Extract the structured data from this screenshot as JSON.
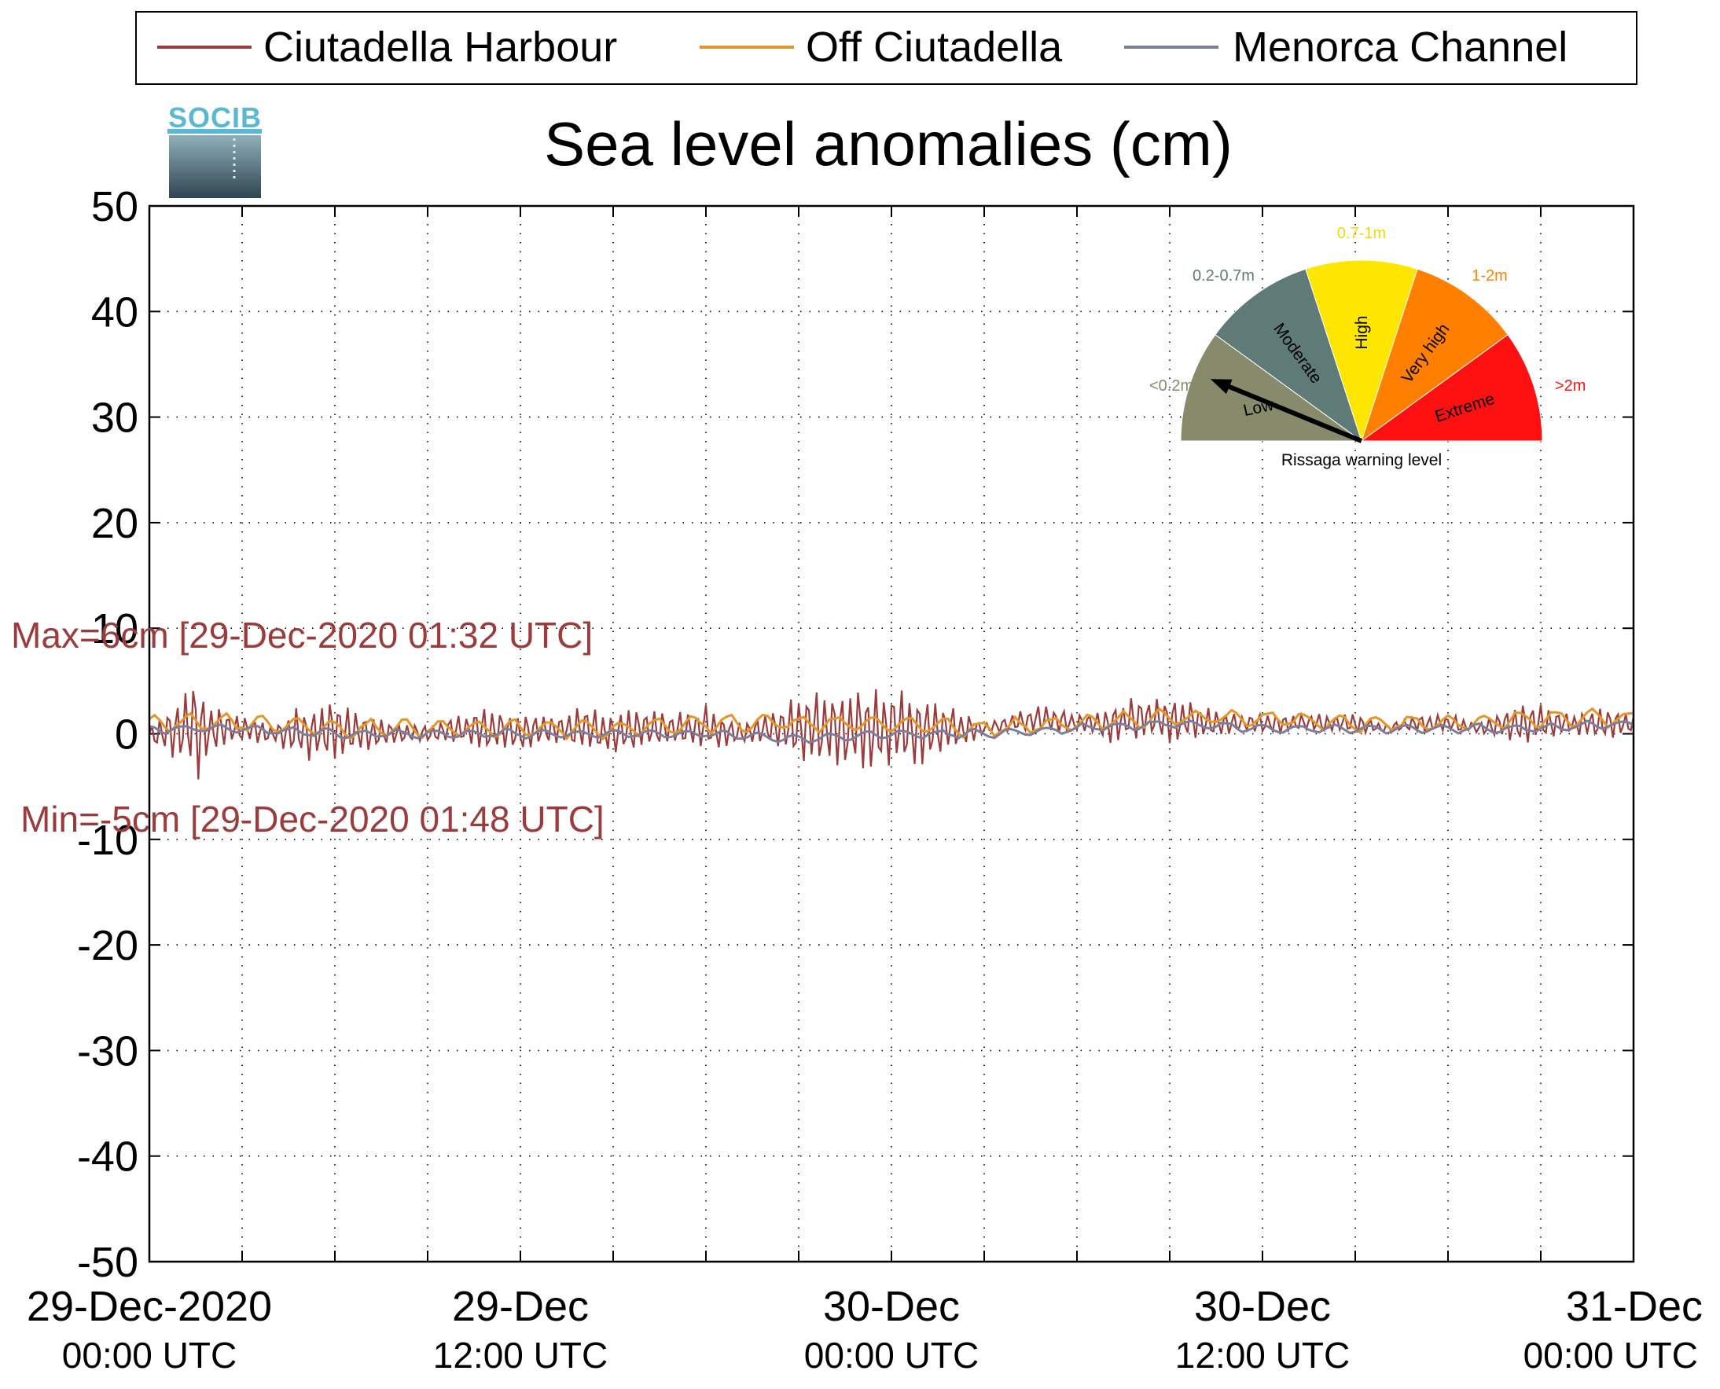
{
  "logo": {
    "text": "SOCIB"
  },
  "colors": {
    "harbour": "#9b3b3b",
    "off": "#e69526",
    "channel": "#7a7f9e",
    "annotation": "#9b3b3b",
    "gauge_low": "#878a6b",
    "gauge_moderate": "#5f7b78",
    "gauge_high": "#ffe600",
    "gauge_very_high": "#ff7f00",
    "gauge_extreme": "#ff1010",
    "label_low": "#878a6b",
    "label_moderate": "#5f7b78",
    "label_high": "#f5d800",
    "label_very_high": "#ff7f00",
    "label_extreme": "#ff1010"
  },
  "gauge": {
    "caption": "Rissaga warning level",
    "pointer_level": "Low",
    "sectors": [
      {
        "name": "Low",
        "range": "<0.2m",
        "color_key": "low"
      },
      {
        "name": "Moderate",
        "range": "0.2-0.7m",
        "color_key": "moderate"
      },
      {
        "name": "High",
        "range": "0.7-1m",
        "color_key": "high"
      },
      {
        "name": "Very high",
        "range": "1-2m",
        "color_key": "very_high"
      },
      {
        "name": "Extreme",
        "range": ">2m",
        "color_key": "extreme"
      }
    ]
  },
  "chart_data": {
    "type": "line",
    "title": "Sea level anomalies (cm)",
    "xlabel": "",
    "ylabel": "",
    "ylim": [
      -50,
      50
    ],
    "yticks": [
      -50,
      -40,
      -30,
      -20,
      -10,
      0,
      10,
      20,
      30,
      40,
      50
    ],
    "xlim": [
      "2020-12-29T00:00Z",
      "2020-12-31T00:00Z"
    ],
    "grid": true,
    "legend_position": "top",
    "xticks": [
      {
        "time": "2020-12-29T00:00Z",
        "line1": "29-Dec-2020",
        "line2": "00:00 UTC"
      },
      {
        "time": "2020-12-29T12:00Z",
        "line1": "29-Dec",
        "line2": "12:00 UTC"
      },
      {
        "time": "2020-12-30T00:00Z",
        "line1": "30-Dec",
        "line2": "00:00 UTC"
      },
      {
        "time": "2020-12-30T12:00Z",
        "line1": "30-Dec",
        "line2": "12:00 UTC"
      },
      {
        "time": "2020-12-31T00:00Z",
        "line1": "31-Dec",
        "line2": "00:00 UTC"
      }
    ],
    "minor_gridlines_hours": 3,
    "annotations": {
      "max": "Max=6cm [29-Dec-2020 01:32 UTC]",
      "min": "Min=-5cm [29-Dec-2020 01:48 UTC]"
    },
    "series": [
      {
        "name": "Ciutadella Harbour",
        "color_key": "harbour",
        "envelope": {
          "time": [
            "2020-12-29T00:00Z",
            "2020-12-29T00:30Z",
            "2020-12-29T01:00Z",
            "2020-12-29T01:32Z",
            "2020-12-29T02:00Z",
            "2020-12-29T03:00Z",
            "2020-12-29T04:00Z",
            "2020-12-29T05:00Z",
            "2020-12-29T06:00Z",
            "2020-12-29T07:00Z",
            "2020-12-29T08:00Z",
            "2020-12-29T09:00Z",
            "2020-12-29T10:00Z",
            "2020-12-29T11:00Z",
            "2020-12-29T12:00Z",
            "2020-12-29T13:00Z",
            "2020-12-29T14:00Z",
            "2020-12-29T15:00Z",
            "2020-12-29T16:00Z",
            "2020-12-29T17:00Z",
            "2020-12-29T18:00Z",
            "2020-12-29T19:00Z",
            "2020-12-29T20:00Z",
            "2020-12-29T21:00Z",
            "2020-12-29T22:00Z",
            "2020-12-29T23:00Z",
            "2020-12-30T00:00Z",
            "2020-12-30T01:00Z",
            "2020-12-30T02:00Z",
            "2020-12-30T03:00Z",
            "2020-12-30T04:00Z",
            "2020-12-30T05:00Z",
            "2020-12-30T06:00Z",
            "2020-12-30T07:00Z",
            "2020-12-30T08:00Z",
            "2020-12-30T09:00Z",
            "2020-12-30T10:00Z",
            "2020-12-30T11:00Z",
            "2020-12-30T12:00Z",
            "2020-12-30T13:00Z",
            "2020-12-30T14:00Z",
            "2020-12-30T15:00Z",
            "2020-12-30T16:00Z",
            "2020-12-30T17:00Z",
            "2020-12-30T18:00Z",
            "2020-12-30T19:00Z",
            "2020-12-30T20:00Z",
            "2020-12-30T21:00Z",
            "2020-12-30T22:00Z",
            "2020-12-30T23:00Z",
            "2020-12-31T00:00Z"
          ],
          "upper": [
            1,
            2,
            4,
            6,
            3,
            2,
            1,
            3,
            4,
            2,
            1,
            1,
            2,
            3,
            2,
            2,
            3,
            2,
            3,
            2,
            3,
            1,
            2,
            4,
            5,
            5,
            5,
            4,
            3,
            1,
            2,
            3,
            2,
            3,
            4,
            4,
            3,
            2,
            2,
            2,
            2,
            2,
            1,
            2,
            2,
            1,
            3,
            3,
            2,
            3,
            2
          ],
          "lower": [
            -1,
            -2,
            -3,
            -5,
            -2,
            -1,
            -1,
            -3,
            -3,
            -2,
            -1,
            -1,
            -1,
            -2,
            -2,
            -1,
            -2,
            -2,
            -2,
            -1,
            -2,
            -1,
            -1,
            -3,
            -4,
            -4,
            -4,
            -3,
            -2,
            0,
            0,
            0,
            0,
            -1,
            -1,
            -1,
            -1,
            0,
            0,
            0,
            0,
            0,
            0,
            0,
            0,
            0,
            -1,
            -1,
            0,
            -1,
            0
          ]
        }
      },
      {
        "name": "Off Ciutadella",
        "color_key": "off",
        "time": [
          "2020-12-29T00:00Z",
          "2020-12-29T03:00Z",
          "2020-12-29T06:00Z",
          "2020-12-29T09:00Z",
          "2020-12-29T12:00Z",
          "2020-12-29T15:00Z",
          "2020-12-29T18:00Z",
          "2020-12-29T21:00Z",
          "2020-12-30T00:00Z",
          "2020-12-30T03:00Z",
          "2020-12-30T06:00Z",
          "2020-12-30T09:00Z",
          "2020-12-30T12:00Z",
          "2020-12-30T15:00Z",
          "2020-12-30T18:00Z",
          "2020-12-30T21:00Z",
          "2020-12-31T00:00Z"
        ],
        "values": [
          1,
          1,
          0.5,
          0.5,
          0.5,
          0.5,
          1,
          1,
          1,
          0.5,
          1,
          1.5,
          1.5,
          1,
          1,
          1.5,
          1.5
        ],
        "noise_amplitude": 1
      },
      {
        "name": "Menorca Channel",
        "color_key": "channel",
        "time": [
          "2020-12-29T00:00Z",
          "2020-12-29T03:00Z",
          "2020-12-29T06:00Z",
          "2020-12-29T09:00Z",
          "2020-12-29T12:00Z",
          "2020-12-29T15:00Z",
          "2020-12-29T18:00Z",
          "2020-12-29T21:00Z",
          "2020-12-30T00:00Z",
          "2020-12-30T03:00Z",
          "2020-12-30T06:00Z",
          "2020-12-30T09:00Z",
          "2020-12-30T12:00Z",
          "2020-12-30T15:00Z",
          "2020-12-30T18:00Z",
          "2020-12-30T21:00Z",
          "2020-12-31T00:00Z"
        ],
        "values": [
          0.5,
          0.5,
          0,
          0,
          0,
          0,
          0,
          -0.5,
          0,
          0,
          0.5,
          1,
          0.5,
          0.5,
          0.5,
          0.5,
          1
        ],
        "noise_amplitude": 0.5
      }
    ]
  }
}
